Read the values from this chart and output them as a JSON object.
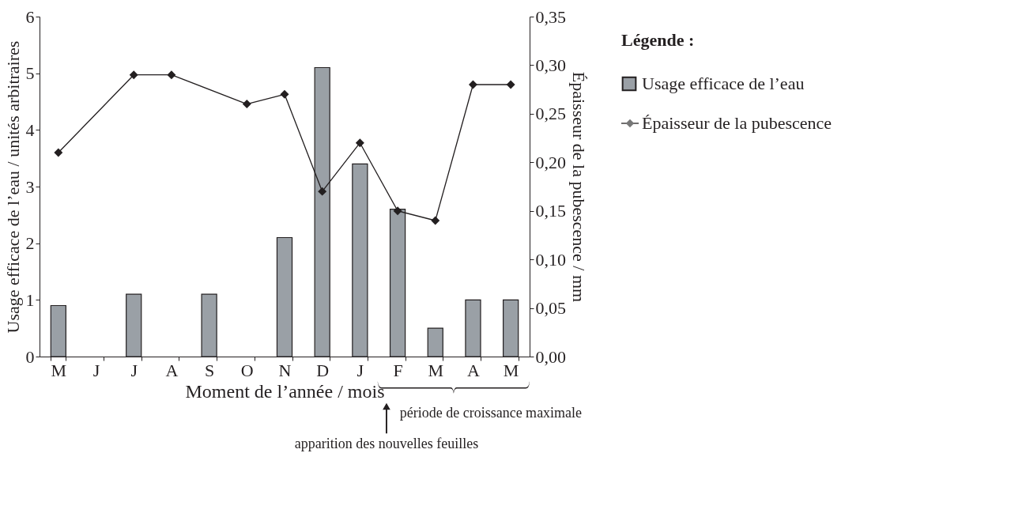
{
  "chart_data": {
    "type": "bar",
    "xlabel": "Moment de l’année / mois",
    "ylabel": "Usage efficace de l’eau / unités arbitraires",
    "y2label": "Épaisseur de la pubescence / mm",
    "legend_title": "Légende :",
    "legend": "top right",
    "categories": [
      "M",
      "J",
      "J",
      "A",
      "S",
      "O",
      "N",
      "D",
      "J",
      "F",
      "M",
      "A",
      "M"
    ],
    "series": [
      {
        "name": "Usage efficace de l’eau",
        "color": "#9aa0a6",
        "values": [
          0.9,
          null,
          1.1,
          null,
          1.1,
          null,
          2.1,
          5.1,
          3.4,
          2.6,
          0.5,
          1.0,
          1.0
        ]
      },
      {
        "name": "Épaisseur de la pubescence",
        "type": "line",
        "axis": "y2",
        "color": "#231f20",
        "marker": "diamond",
        "values": [
          0.21,
          null,
          0.29,
          0.29,
          null,
          0.26,
          0.27,
          0.17,
          0.22,
          0.15,
          0.14,
          0.28,
          0.28
        ]
      }
    ],
    "ylim": [
      0,
      6
    ],
    "yticks": [
      0,
      1,
      2,
      3,
      4,
      5,
      6
    ],
    "y2lim": [
      0,
      0.35
    ],
    "y2ticks": [
      {
        "value": 0,
        "label": "0,00"
      },
      {
        "value": 0.05,
        "label": "0,05"
      },
      {
        "value": 0.1,
        "label": "0,10"
      },
      {
        "value": 0.15,
        "label": "0,15"
      },
      {
        "value": 0.2,
        "label": "0,20"
      },
      {
        "value": 0.25,
        "label": "0,25"
      },
      {
        "value": 0.3,
        "label": "0,30"
      },
      {
        "value": 0.35,
        "label": "0,35"
      }
    ],
    "grid": false,
    "annotations": [
      "apparition des nouvelles feuilles",
      "période de croissance maximale"
    ]
  }
}
